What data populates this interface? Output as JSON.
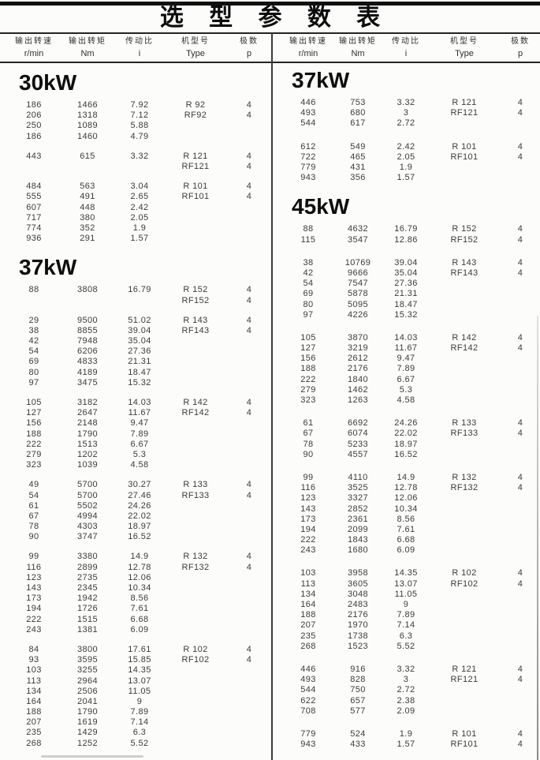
{
  "title": "选 型 参 数 表",
  "headers": {
    "labels": [
      "输出转速",
      "输出转矩",
      "传动比",
      "机型号",
      "极数"
    ],
    "units": [
      "r/min",
      "Nm",
      "i",
      "Type",
      "p"
    ]
  },
  "colors": {
    "ink": "#101010",
    "text": "#3b3b3b",
    "paper": "#fcfcfb"
  },
  "columns": [
    {
      "side": "left",
      "sections": [
        {
          "heading": "30kW",
          "groups": [
            [
              [
                "186",
                "1466",
                "7.92",
                "R 92",
                "4"
              ],
              [
                "206",
                "1318",
                "7.12",
                "RF92",
                "4"
              ],
              [
                "250",
                "1089",
                "5.88",
                "",
                ""
              ],
              [
                "186",
                "1460",
                "4.79",
                "",
                ""
              ]
            ],
            [
              [
                "443",
                "615",
                "3.32",
                "R 121",
                "4"
              ],
              [
                "",
                "",
                "",
                "RF121",
                "4"
              ]
            ],
            [
              [
                "484",
                "563",
                "3.04",
                "R 101",
                "4"
              ],
              [
                "555",
                "491",
                "2.65",
                "RF101",
                "4"
              ],
              [
                "607",
                "448",
                "2.42",
                "",
                ""
              ],
              [
                "717",
                "380",
                "2.05",
                "",
                ""
              ],
              [
                "774",
                "352",
                "1.9",
                "",
                ""
              ],
              [
                "936",
                "291",
                "1.57",
                "",
                ""
              ]
            ]
          ]
        },
        {
          "heading": "37kW",
          "groups": [
            [
              [
                "88",
                "3808",
                "16.79",
                "R 152",
                "4"
              ],
              [
                "",
                "",
                "",
                "RF152",
                "4"
              ]
            ],
            [
              [
                "29",
                "9500",
                "51.02",
                "R 143",
                "4"
              ],
              [
                "38",
                "8855",
                "39.04",
                "RF143",
                "4"
              ],
              [
                "42",
                "7948",
                "35.04",
                "",
                ""
              ],
              [
                "54",
                "6206",
                "27.36",
                "",
                ""
              ],
              [
                "69",
                "4833",
                "21.31",
                "",
                ""
              ],
              [
                "80",
                "4189",
                "18.47",
                "",
                ""
              ],
              [
                "97",
                "3475",
                "15.32",
                "",
                ""
              ]
            ],
            [
              [
                "105",
                "3182",
                "14.03",
                "R 142",
                "4"
              ],
              [
                "127",
                "2647",
                "11.67",
                "RF142",
                "4"
              ],
              [
                "156",
                "2148",
                "9.47",
                "",
                ""
              ],
              [
                "188",
                "1790",
                "7.89",
                "",
                ""
              ],
              [
                "222",
                "1513",
                "6.67",
                "",
                ""
              ],
              [
                "279",
                "1202",
                "5.3",
                "",
                ""
              ],
              [
                "323",
                "1039",
                "4.58",
                "",
                ""
              ]
            ],
            [
              [
                "49",
                "5700",
                "30.27",
                "R 133",
                "4"
              ],
              [
                "54",
                "5700",
                "27.46",
                "RF133",
                "4"
              ],
              [
                "61",
                "5502",
                "24.26",
                "",
                ""
              ],
              [
                "67",
                "4994",
                "22.02",
                "",
                ""
              ],
              [
                "78",
                "4303",
                "18.97",
                "",
                ""
              ],
              [
                "90",
                "3747",
                "16.52",
                "",
                ""
              ]
            ],
            [
              [
                "99",
                "3380",
                "14.9",
                "R 132",
                "4"
              ],
              [
                "116",
                "2899",
                "12.78",
                "RF132",
                "4"
              ],
              [
                "123",
                "2735",
                "12.06",
                "",
                ""
              ],
              [
                "143",
                "2345",
                "10.34",
                "",
                ""
              ],
              [
                "173",
                "1942",
                "8.56",
                "",
                ""
              ],
              [
                "194",
                "1726",
                "7.61",
                "",
                ""
              ],
              [
                "222",
                "1515",
                "6.68",
                "",
                ""
              ],
              [
                "243",
                "1381",
                "6.09",
                "",
                ""
              ]
            ],
            [
              [
                "84",
                "3800",
                "17.61",
                "R 102",
                "4"
              ],
              [
                "93",
                "3595",
                "15.85",
                "RF102",
                "4"
              ],
              [
                "103",
                "3255",
                "14.35",
                "",
                ""
              ],
              [
                "113",
                "2964",
                "13.07",
                "",
                ""
              ],
              [
                "134",
                "2506",
                "11.05",
                "",
                ""
              ],
              [
                "164",
                "2041",
                "9",
                "",
                ""
              ],
              [
                "188",
                "1790",
                "7.89",
                "",
                ""
              ],
              [
                "207",
                "1619",
                "7.14",
                "",
                ""
              ],
              [
                "235",
                "1429",
                "6.3",
                "",
                ""
              ],
              [
                "268",
                "1252",
                "5.52",
                "",
                ""
              ]
            ]
          ]
        }
      ]
    },
    {
      "side": "right",
      "sections": [
        {
          "heading": "37kW",
          "groups": [
            [
              [
                "446",
                "753",
                "3.32",
                "R 121",
                "4"
              ],
              [
                "493",
                "680",
                "3",
                "RF121",
                "4"
              ],
              [
                "544",
                "617",
                "2.72",
                "",
                ""
              ]
            ],
            [
              [
                "612",
                "549",
                "2.42",
                "R 101",
                "4"
              ],
              [
                "722",
                "465",
                "2.05",
                "RF101",
                "4"
              ],
              [
                "779",
                "431",
                "1.9",
                "",
                ""
              ],
              [
                "943",
                "356",
                "1.57",
                "",
                ""
              ]
            ]
          ]
        },
        {
          "heading": "45kW",
          "groups": [
            [
              [
                "88",
                "4632",
                "16.79",
                "R 152",
                "4"
              ],
              [
                "115",
                "3547",
                "12.86",
                "RF152",
                "4"
              ]
            ],
            [
              [
                "38",
                "10769",
                "39.04",
                "R 143",
                "4"
              ],
              [
                "42",
                "9666",
                "35.04",
                "RF143",
                "4"
              ],
              [
                "54",
                "7547",
                "27.36",
                "",
                ""
              ],
              [
                "69",
                "5878",
                "21.31",
                "",
                ""
              ],
              [
                "80",
                "5095",
                "18.47",
                "",
                ""
              ],
              [
                "97",
                "4226",
                "15.32",
                "",
                ""
              ]
            ],
            [
              [
                "105",
                "3870",
                "14.03",
                "R 142",
                "4"
              ],
              [
                "127",
                "3219",
                "11.67",
                "RF142",
                "4"
              ],
              [
                "156",
                "2612",
                "9.47",
                "",
                ""
              ],
              [
                "188",
                "2176",
                "7.89",
                "",
                ""
              ],
              [
                "222",
                "1840",
                "6.67",
                "",
                ""
              ],
              [
                "279",
                "1462",
                "5.3",
                "",
                ""
              ],
              [
                "323",
                "1263",
                "4.58",
                "",
                ""
              ]
            ],
            [
              [
                "61",
                "6692",
                "24.26",
                "R 133",
                "4"
              ],
              [
                "67",
                "6074",
                "22.02",
                "RF133",
                "4"
              ],
              [
                "78",
                "5233",
                "18.97",
                "",
                ""
              ],
              [
                "90",
                "4557",
                "16.52",
                "",
                ""
              ]
            ],
            [
              [
                "99",
                "4110",
                "14.9",
                "R 132",
                "4"
              ],
              [
                "116",
                "3525",
                "12.78",
                "RF132",
                "4"
              ],
              [
                "123",
                "3327",
                "12.06",
                "",
                ""
              ],
              [
                "143",
                "2852",
                "10.34",
                "",
                ""
              ],
              [
                "173",
                "2361",
                "8.56",
                "",
                ""
              ],
              [
                "194",
                "2099",
                "7.61",
                "",
                ""
              ],
              [
                "222",
                "1843",
                "6.68",
                "",
                ""
              ],
              [
                "243",
                "1680",
                "6.09",
                "",
                ""
              ]
            ],
            [
              [
                "103",
                "3958",
                "14.35",
                "R 102",
                "4"
              ],
              [
                "113",
                "3605",
                "13.07",
                "RF102",
                "4"
              ],
              [
                "134",
                "3048",
                "11.05",
                "",
                ""
              ],
              [
                "164",
                "2483",
                "9",
                "",
                ""
              ],
              [
                "188",
                "2176",
                "7.89",
                "",
                ""
              ],
              [
                "207",
                "1970",
                "7.14",
                "",
                ""
              ],
              [
                "235",
                "1738",
                "6.3",
                "",
                ""
              ],
              [
                "268",
                "1523",
                "5.52",
                "",
                ""
              ]
            ],
            [
              [
                "446",
                "916",
                "3.32",
                "R 121",
                "4"
              ],
              [
                "493",
                "828",
                "3",
                "RF121",
                "4"
              ],
              [
                "544",
                "750",
                "2.72",
                "",
                ""
              ],
              [
                "622",
                "657",
                "2.38",
                "",
                ""
              ],
              [
                "708",
                "577",
                "2.09",
                "",
                ""
              ]
            ],
            [
              [
                "779",
                "524",
                "1.9",
                "R 101",
                "4"
              ],
              [
                "943",
                "433",
                "1.57",
                "RF101",
                "4"
              ]
            ]
          ]
        }
      ]
    }
  ]
}
